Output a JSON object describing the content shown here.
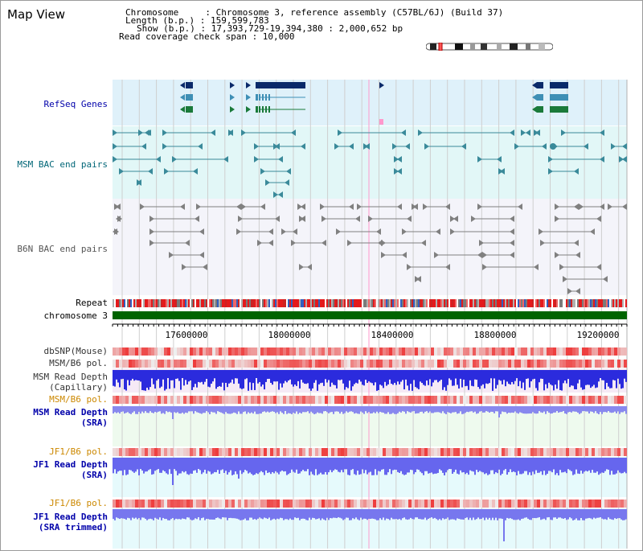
{
  "app": {
    "title": "Map View"
  },
  "info": {
    "lines": [
      "Chromosome     : Chromosome 3, reference assembly (C57BL/6J) (Build 37)",
      "Length (b.p.) : 159,599,783",
      "Show (b.p.) : 17,393,729-19,394,380 : 2,000,652 bp",
      "Read coverage check span : 10,000"
    ]
  },
  "colors": {
    "refseq": "#0a2a6a",
    "msm_bac": "#3a8a9a",
    "b6n_bac": "#808080",
    "chromosome": "#006400",
    "snp_red": "#ee3333",
    "depth_blue": "#2222dd",
    "label_blue": "#0000aa",
    "label_orange": "#cc8800",
    "label_teal": "#006677",
    "highlight_pink": "#ff99cc"
  },
  "tracks": {
    "refseq": "RefSeq Genes",
    "msm_bac": "MSM BAC end pairs",
    "b6n_bac": "B6N BAC end pairs",
    "repeat": "Repeat",
    "chromosome": "chromosome 3",
    "dbsnp": "dbSNP(Mouse)",
    "msm_b6_pol_1": "MSM/B6 pol.",
    "msm_read_depth_cap_1": "MSM Read Depth",
    "msm_read_depth_cap_2": "(Capillary)",
    "msm_b6_pol_2": "MSM/B6 pol.",
    "msm_read_depth_sra_1": "MSM Read Depth",
    "msm_read_depth_sra_2": "(SRA)",
    "jf1_b6_pol_1": "JF1/B6 pol.",
    "jf1_read_depth_sra_1": "JF1 Read Depth",
    "jf1_read_depth_sra_2": "(SRA)",
    "jf1_b6_pol_2": "JF1/B6 pol.",
    "jf1_read_depth_trim_1": "JF1 Read Depth",
    "jf1_read_depth_trim_2": "(SRA trimmed)"
  },
  "axis": {
    "ticks": [
      "17600000",
      "18000000",
      "18400000",
      "18800000",
      "19200000"
    ]
  }
}
